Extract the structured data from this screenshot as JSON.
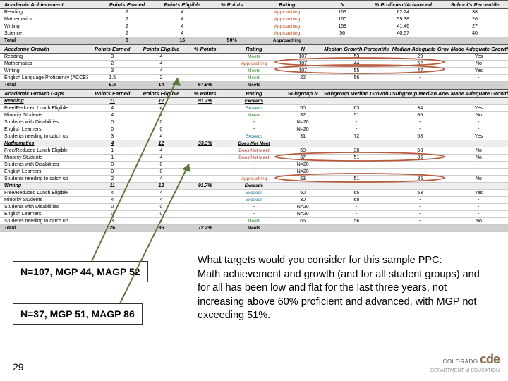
{
  "achievement": {
    "header": [
      "Academic Achievement",
      "Points Earned",
      "Points Eligible",
      "% Points",
      "Rating",
      "N",
      "% Proficient/Advanced",
      "School's Percentile"
    ],
    "rows": [
      {
        "c": [
          "Reading",
          "2",
          "4",
          "",
          "Approaching",
          "163",
          "62.24",
          "38"
        ],
        "rc": "r-app"
      },
      {
        "c": [
          "Mathematics",
          "2",
          "4",
          "",
          "Approaching",
          "160",
          "59.38",
          "26"
        ],
        "rc": "r-app"
      },
      {
        "c": [
          "Writing",
          "2",
          "4",
          "",
          "Approaching",
          "159",
          "41.46",
          "27"
        ],
        "rc": "r-app"
      },
      {
        "c": [
          "Science",
          "2",
          "4",
          "",
          "Approaching",
          "56",
          "40.57",
          "40"
        ],
        "rc": "r-app"
      }
    ],
    "total": [
      "Total",
      "8",
      "16",
      "50%",
      "Approaching",
      "",
      "",
      ""
    ],
    "totalRc": "rh-app"
  },
  "growth": {
    "header": [
      "Academic Growth",
      "Points Earned",
      "Points Eligible",
      "% Points",
      "Rating",
      "N",
      "Median Growth Percentile",
      "Median Adequate Growth Percentile",
      "Made Adequate Growth?"
    ],
    "rows": [
      {
        "c": [
          "Reading",
          "3",
          "4",
          "",
          "Meets",
          "107",
          "53",
          "29",
          "Yes"
        ],
        "rc": "r-meets",
        "oval": true
      },
      {
        "c": [
          "Mathematics",
          "2",
          "4",
          "",
          "Approaching",
          "107",
          "44",
          "52",
          "No"
        ],
        "rc": "r-app",
        "oval": true
      },
      {
        "c": [
          "Writing",
          "3",
          "4",
          "",
          "Meets",
          "107",
          "55",
          "47",
          "Yes"
        ],
        "rc": "r-meets"
      },
      {
        "c": [
          "English Language Proficiency (ACCESS)",
          "1.5",
          "2",
          "",
          "Meets",
          "22",
          "56",
          "-",
          "-"
        ],
        "rc": "r-meets"
      }
    ],
    "total": [
      "Total",
      "9.5",
      "14",
      "67.9%",
      "Meets",
      "",
      "",
      "",
      ""
    ],
    "totalRc": "rh-meets"
  },
  "gaps": {
    "header": [
      "Academic Growth Gaps",
      "Points Earned",
      "Points Eligible",
      "% Points",
      "Rating",
      "Subgroup N",
      "Subgroup Median Growth Percentile",
      "Subgroup Median Adequate Growth Percentile",
      "Made Adequate Growth?"
    ],
    "reading": {
      "title": "Reading",
      "sum": [
        "",
        "11",
        "12",
        "91.7%",
        "Exceeds",
        "",
        "",
        "",
        ""
      ],
      "sumRc": "rh-exc",
      "rows": [
        {
          "c": [
            "Free/Reduced Lunch Eligible",
            "4",
            "4",
            "",
            "Exceeds",
            "50",
            "63",
            "34",
            "Yes"
          ],
          "rc": "r-exc"
        },
        {
          "c": [
            "Minority Students",
            "4",
            "4",
            "",
            "Meets",
            "37",
            "51",
            "86",
            "No"
          ],
          "rc": "r-meets"
        },
        {
          "c": [
            "Students with Disabilities",
            "0",
            "0",
            "",
            "-",
            "N<20",
            "-",
            "-",
            "-"
          ]
        },
        {
          "c": [
            "English Learners",
            "0",
            "0",
            "",
            "-",
            "N<20",
            "-",
            "-",
            "-"
          ]
        },
        {
          "c": [
            "Students needing to catch up",
            "3",
            "4",
            "",
            "Exceeds",
            "31",
            "72",
            "68",
            "Yes"
          ],
          "rc": "r-exc"
        }
      ]
    },
    "math": {
      "title": "Mathematics",
      "sum": [
        "",
        "4",
        "12",
        "33.3%",
        "Does Not Meet",
        "",
        "",
        "",
        ""
      ],
      "sumRc": "rh-dnm",
      "rows": [
        {
          "c": [
            "Free/Reduced Lunch Eligible",
            "1",
            "4",
            "",
            "Does Not Meet",
            "50",
            "38",
            "58",
            "No"
          ],
          "rc": "r-dnm"
        },
        {
          "c": [
            "Minority Students",
            "1",
            "4",
            "",
            "Does Not Meet",
            "37",
            "51",
            "86",
            "No"
          ],
          "rc": "r-dnm",
          "oval": true
        },
        {
          "c": [
            "Students with Disabilities",
            "0",
            "0",
            "",
            "-",
            "N<20",
            "-",
            "-",
            "-"
          ]
        },
        {
          "c": [
            "English Learners",
            "0",
            "0",
            "",
            "-",
            "N<20",
            "-",
            "-",
            "-"
          ]
        },
        {
          "c": [
            "Students needing to catch up",
            "2",
            "4",
            "",
            "Approaching",
            "53",
            "51",
            "85",
            "No"
          ],
          "rc": "r-app",
          "oval": true
        }
      ]
    },
    "writing": {
      "title": "Writing",
      "sum": [
        "",
        "11",
        "12",
        "91.7%",
        "Exceeds",
        "",
        "",
        "",
        ""
      ],
      "sumRc": "rh-exc",
      "rows": [
        {
          "c": [
            "Free/Reduced Lunch Eligible",
            "4",
            "4",
            "",
            "Exceeds",
            "50",
            "65",
            "53",
            "Yes"
          ],
          "rc": "r-exc"
        },
        {
          "c": [
            "Minority Students",
            "4",
            "4",
            "",
            "Exceeds",
            "30",
            "68",
            "-",
            "-"
          ],
          "rc": "r-exc"
        },
        {
          "c": [
            "Students with Disabilities",
            "0",
            "0",
            "",
            "-",
            "N<20",
            "-",
            "-",
            "-"
          ]
        },
        {
          "c": [
            "English Learners",
            "0",
            "0",
            "",
            "-",
            "N<20",
            "-",
            "-",
            "-"
          ]
        },
        {
          "c": [
            "Students needing to catch up",
            "3",
            "4",
            "",
            "Meets",
            "65",
            "56",
            "-",
            "No"
          ],
          "rc": "r-meets"
        }
      ]
    },
    "total": [
      "Total",
      "26",
      "36",
      "72.2%",
      "Meets",
      "",
      "",
      "",
      ""
    ],
    "totalRc": "rh-meets"
  },
  "callout1": "N=107, MGP 44, MAGP 52",
  "callout2": "N=37, MGP 51, MAGP 86",
  "question": "What targets would you consider for this sample PPC:\nMath achievement and growth (and for all student groups) and for all  has been low and flat for the last three years, not increasing above 60% proficient and advanced, with MGP not exceeding 51%.",
  "slideNum": "29",
  "logo": {
    "colorado": "COLORADO",
    "dept": "DEPARTMENT of EDUCATION",
    "cde": "cde"
  }
}
